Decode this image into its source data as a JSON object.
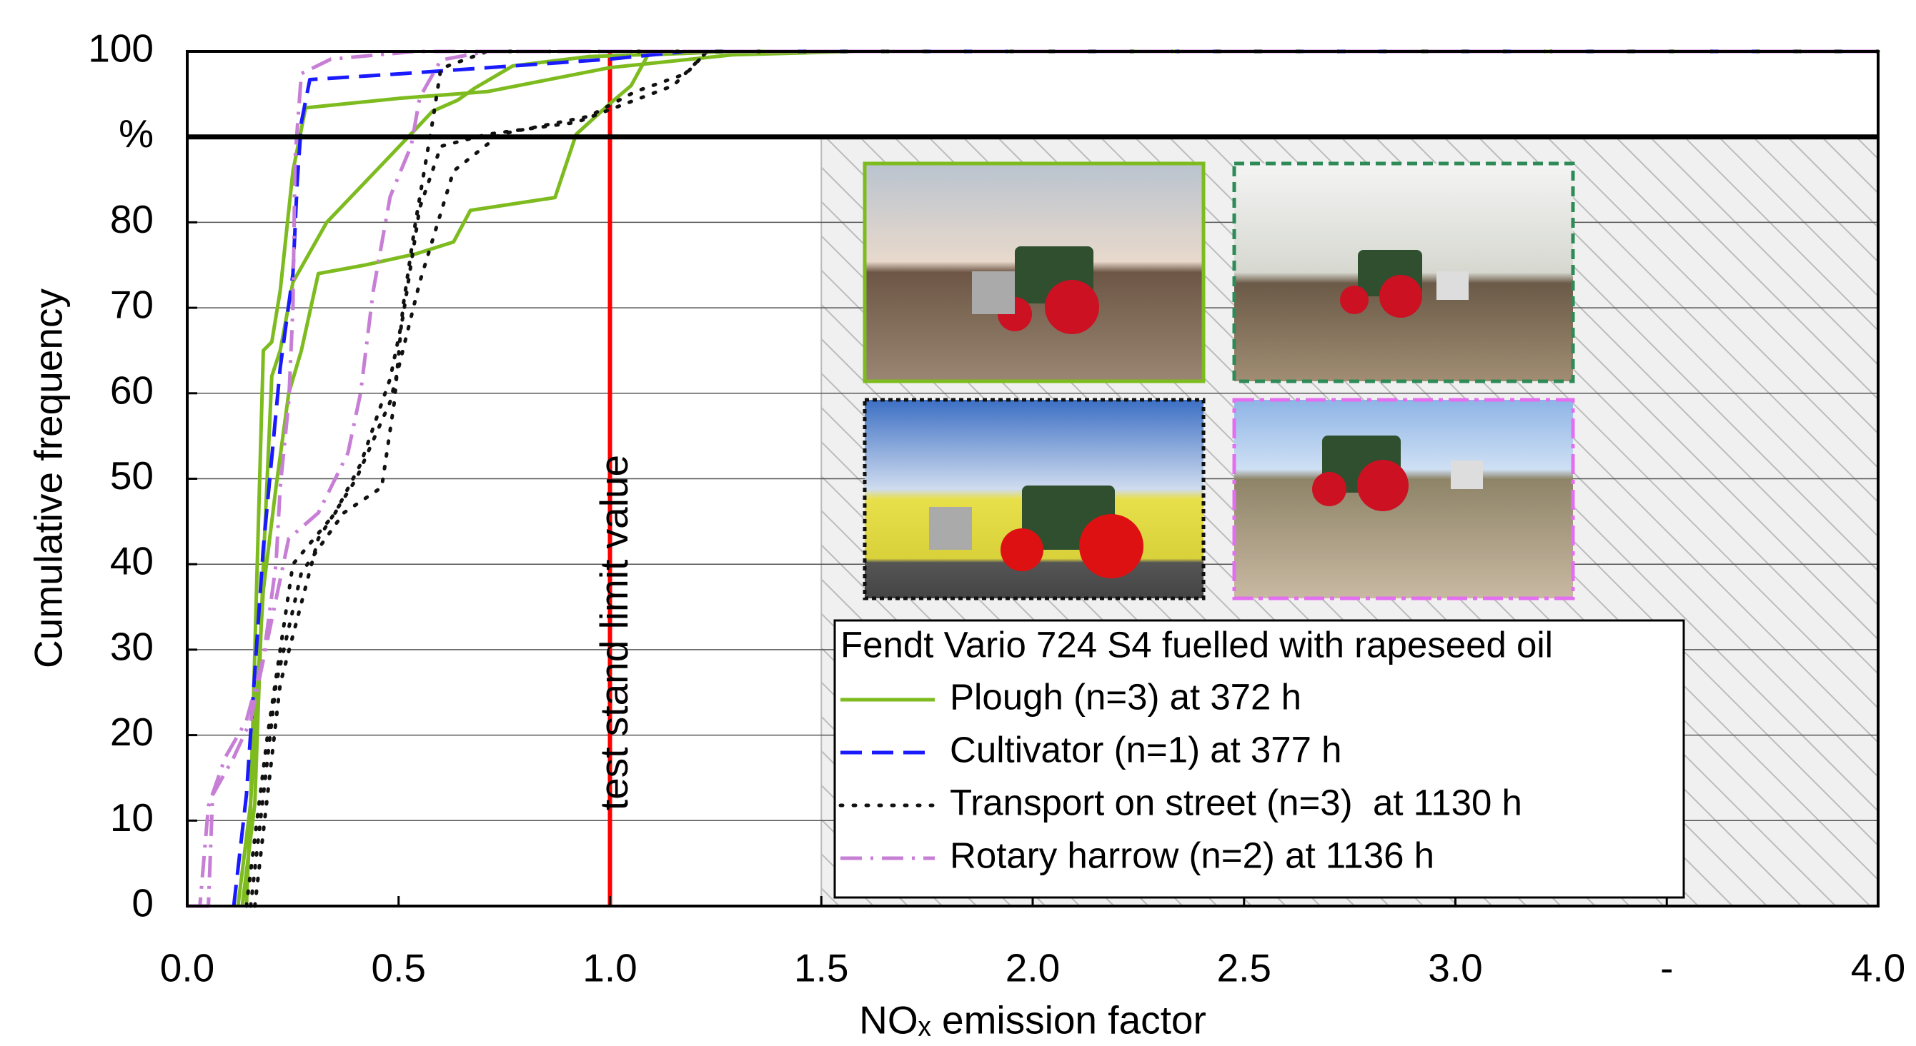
{
  "chart_data": {
    "type": "line",
    "x_label": "NOₓ emission factor",
    "y_label": "Cumulative frequency",
    "xlim": [
      0,
      4.0
    ],
    "ylim": [
      0,
      100
    ],
    "xticks": [
      {
        "value": 0,
        "label": "0.0"
      },
      0.5,
      {
        "value": 1,
        "label": "1.0"
      },
      1.5,
      {
        "value": 2,
        "label": "2.0"
      },
      2.5,
      {
        "value": 3,
        "label": "3.0"
      },
      {
        "value": 3.5,
        "label": "-"
      },
      {
        "value": 4,
        "label": "4.0"
      }
    ],
    "yticks": [
      0,
      10,
      20,
      30,
      40,
      50,
      60,
      70,
      80,
      {
        "value": 90,
        "label": "%"
      },
      100
    ],
    "grid": true,
    "separator_y": 90,
    "shaded_xrange": [
      1.5,
      4.0
    ],
    "reference_line": {
      "x": 1.0,
      "label": "test stand limit value",
      "color": "#ff0000"
    },
    "legend_title": "Fendt Vario 724 S4 fuelled with rapeseed oil",
    "legend_position": "lower right",
    "series": [
      {
        "name": "Plough (n=3) at 372 h",
        "color": "#7dbb1f",
        "dash": "solid",
        "runs": [
          {
            "x": [
              0.12,
              0.15,
              0.165,
              0.18,
              0.2,
              0.22,
              0.25,
              0.28,
              0.5,
              0.71,
              1.0,
              1.29,
              1.58,
              4.0
            ],
            "values": [
              0,
              12,
              39,
              65,
              66,
              72,
              86,
              93.4,
              94.5,
              95.3,
              98.1,
              99.6,
              100,
              100
            ]
          },
          {
            "x": [
              0.14,
              0.15,
              0.18,
              0.21,
              0.24,
              0.27,
              0.31,
              0.42,
              0.54,
              0.63,
              0.67,
              0.87,
              0.92,
              1.0,
              1.05,
              1.09,
              1.29,
              4.0
            ],
            "values": [
              0,
              12,
              37,
              49,
              60,
              65,
              74,
              75,
              76.3,
              77.7,
              81.4,
              82.9,
              90.3,
              93.9,
              96,
              99.6,
              100,
              100
            ]
          },
          {
            "x": [
              0.13,
              0.16,
              0.18,
              0.2,
              0.22,
              0.25,
              0.33,
              0.44,
              0.55,
              0.58,
              0.64,
              0.68,
              0.77,
              0.95,
              1.3,
              4.0
            ],
            "values": [
              0,
              12,
              40,
              62,
              65,
              73,
              80,
              85.7,
              91.4,
              93,
              94.3,
              95.7,
              98.3,
              99.4,
              100,
              100
            ]
          }
        ]
      },
      {
        "name": "Cultivator (n=1) at 377 h",
        "color": "#1a1aff",
        "dash": "dashed",
        "runs": [
          {
            "x": [
              0.11,
              0.14,
              0.18,
              0.22,
              0.25,
              0.26,
              0.27,
              0.29,
              0.51,
              1.0,
              1.18,
              4.0
            ],
            "values": [
              0,
              13,
              42,
              63,
              74,
              84.6,
              91.7,
              96.7,
              97.4,
              99.1,
              100,
              100
            ]
          }
        ]
      },
      {
        "name": "Transport on street (n=3)  at 1130 h",
        "color": "#111111",
        "dash": "dotted",
        "runs": [
          {
            "x": [
              0.15,
              0.18,
              0.21,
              0.27,
              0.37,
              0.46,
              0.49,
              0.51,
              0.54,
              0.58,
              0.6,
              0.71,
              4.0
            ],
            "values": [
              0,
              13,
              26,
              39,
              46,
              49,
              59,
              70,
              80,
              91.7,
              98,
              100,
              100
            ]
          },
          {
            "x": [
              0.14,
              0.19,
              0.25,
              0.35,
              0.41,
              0.48,
              0.51,
              0.55,
              0.6,
              0.71,
              0.92,
              1.15,
              1.23,
              4.0
            ],
            "values": [
              0,
              20,
              40,
              46,
              51.7,
              61.7,
              68.9,
              81.7,
              88.9,
              90.3,
              91.7,
              96,
              100,
              100
            ]
          },
          {
            "x": [
              0.16,
              0.22,
              0.31,
              0.4,
              0.48,
              0.55,
              0.63,
              0.74,
              0.95,
              1.06,
              1.18,
              1.23,
              4.0
            ],
            "values": [
              0,
              26,
              43,
              50,
              59,
              73,
              86,
              90.3,
              92.4,
              95.3,
              97.4,
              100,
              100
            ]
          }
        ]
      },
      {
        "name": "Rotary harrow (n=2) at 1136 h",
        "color": "#c77fd6",
        "dash": "dashdot",
        "runs": [
          {
            "x": [
              0.0,
              0.03,
              0.05,
              0.09,
              0.14,
              0.18,
              0.21,
              0.22,
              0.24,
              0.25,
              0.255,
              0.27,
              0.34,
              0.54,
              4.0
            ],
            "values": [
              0,
              0,
              11.7,
              17.4,
              21.7,
              29,
              40,
              49,
              59,
              70,
              87.4,
              97.4,
              99.1,
              100,
              100
            ]
          },
          {
            "x": [
              0.02,
              0.05,
              0.06,
              0.11,
              0.15,
              0.24,
              0.31,
              0.38,
              0.41,
              0.44,
              0.48,
              0.53,
              0.55,
              0.6,
              0.71,
              4.0
            ],
            "values": [
              0,
              0,
              13,
              17.4,
              21.7,
              43,
              46,
              53,
              60,
              72,
              83,
              89,
              94.6,
              99,
              100,
              100
            ]
          }
        ]
      }
    ]
  }
}
